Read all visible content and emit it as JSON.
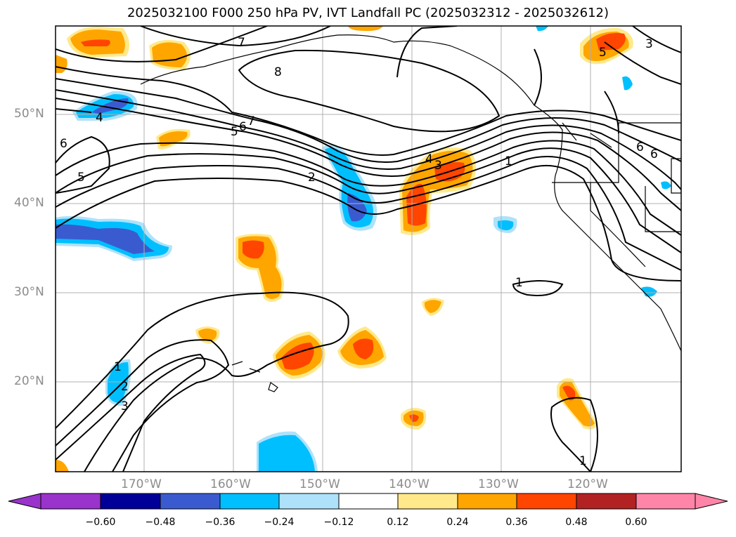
{
  "title": "2025032100 F000 250 hPa PV, IVT Landfall PC (2025032312 - 2025032612)",
  "map": {
    "lat_labels": [
      "50°N",
      "40°N",
      "30°N",
      "20°N"
    ],
    "lon_labels": [
      "170°W",
      "160°W",
      "150°W",
      "140°W",
      "130°W",
      "120°W"
    ],
    "contour_labels": [
      "7",
      "8",
      "3",
      "5",
      "4",
      "6",
      "6",
      "5",
      "7",
      "5",
      "6",
      "4",
      "3",
      "1",
      "2",
      "6",
      "1",
      "1",
      "2",
      "3",
      "1"
    ]
  },
  "colorbar": {
    "colors": [
      "#9933cc",
      "#000099",
      "#3a5bd0",
      "#00bfff",
      "#aee2fa",
      "#ffffff",
      "#ffe98a",
      "#ffa500",
      "#ff4500",
      "#b22222",
      "#ff85a8"
    ],
    "tick_labels": [
      "−0.60",
      "−0.48",
      "−0.36",
      "−0.24",
      "−0.12",
      "0.12",
      "0.24",
      "0.36",
      "0.48",
      "0.60"
    ]
  }
}
